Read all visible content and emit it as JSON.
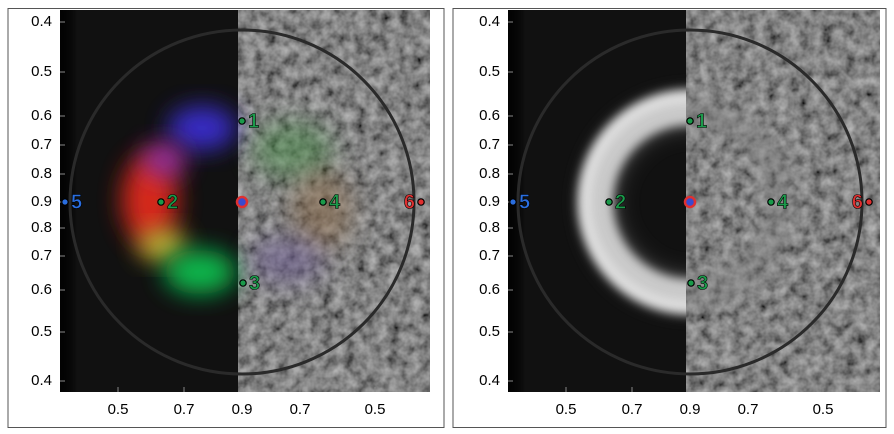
{
  "panels": [
    {
      "y_ticks": [
        0.4,
        0.5,
        0.6,
        0.7,
        0.8,
        0.9,
        0.8,
        0.7,
        0.6,
        0.5,
        0.4
      ],
      "x_ticks": [
        0.5,
        0.7,
        0.9,
        0.7,
        0.5
      ],
      "markers": [
        1,
        2,
        3,
        4,
        5,
        6
      ]
    },
    {
      "y_ticks": [
        0.4,
        0.5,
        0.6,
        0.7,
        0.8,
        0.9,
        0.8,
        0.7,
        0.6,
        0.5,
        0.4
      ],
      "x_ticks": [
        0.5,
        0.7,
        0.9,
        0.7,
        0.5
      ],
      "markers": [
        1,
        2,
        3,
        4,
        5,
        6
      ]
    }
  ]
}
